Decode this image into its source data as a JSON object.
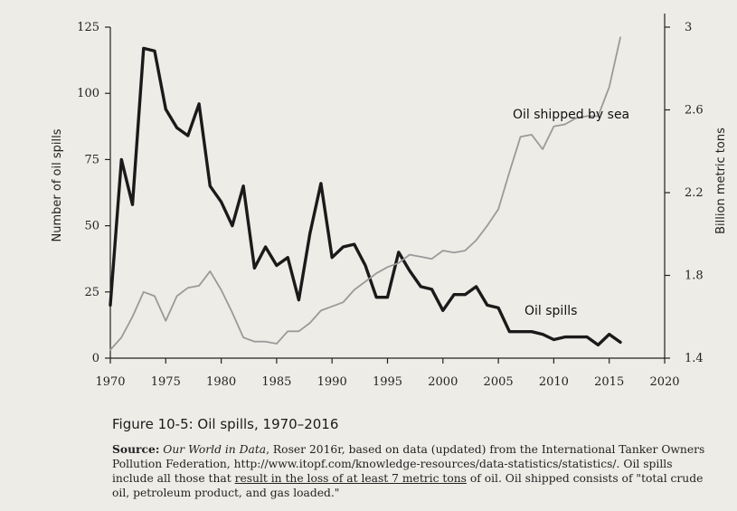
{
  "figure": {
    "title": "Figure 10-5: Oil spills, 1970–2016",
    "source_label": "Source:",
    "source_title": "Our World in Data",
    "source_part1": ", Roser 2016r, based on data (updated) from the International Tanker Owners Pollution Federation, http://www.itopf.com/knowledge-resources/data-statistics/statistics/. Oil spills include all those that ",
    "source_underlined": "result in the loss of at least 7 metric tons",
    "source_part2": " of oil. Oil shipped consists of \"total crude oil, petroleum product, and gas loaded.\""
  },
  "chart_data": {
    "type": "line",
    "title": "",
    "xlabel": "",
    "ylabel": "Number of oil spills",
    "y2label": "Billion metric tons",
    "xlim": [
      1970,
      2020
    ],
    "ylim": [
      0,
      125
    ],
    "y2lim": [
      1.4,
      3.0
    ],
    "x_ticks": [
      "1970",
      "1975",
      "1980",
      "1985",
      "1990",
      "1995",
      "2000",
      "2005",
      "2010",
      "2015",
      "2020"
    ],
    "y_ticks": [
      "0",
      "25",
      "50",
      "75",
      "100",
      "125"
    ],
    "y2_ticks": [
      "1.4",
      "1.8",
      "2.2",
      "2.6",
      "3"
    ],
    "colors": {
      "spills": "#1a1a1a",
      "shipped": "#9a9a9a"
    },
    "series": [
      {
        "name": "Oil spills",
        "axis": "left",
        "x": [
          1970,
          1971,
          1972,
          1973,
          1974,
          1975,
          1976,
          1977,
          1978,
          1979,
          1980,
          1981,
          1982,
          1983,
          1984,
          1985,
          1986,
          1987,
          1988,
          1989,
          1990,
          1991,
          1992,
          1993,
          1994,
          1995,
          1996,
          1997,
          1998,
          1999,
          2000,
          2001,
          2002,
          2003,
          2004,
          2005,
          2006,
          2007,
          2008,
          2009,
          2010,
          2011,
          2012,
          2013,
          2014,
          2015,
          2016
        ],
        "values": [
          20,
          75,
          58,
          117,
          116,
          94,
          87,
          84,
          96,
          65,
          59,
          50,
          65,
          34,
          42,
          35,
          38,
          22,
          47,
          66,
          38,
          42,
          43,
          35,
          23,
          23,
          40,
          33,
          27,
          26,
          18,
          24,
          24,
          27,
          20,
          19,
          10,
          10,
          10,
          9,
          7,
          8,
          8,
          8,
          5,
          9,
          6
        ]
      },
      {
        "name": "Oil shipped by sea",
        "axis": "right",
        "x": [
          1970,
          1971,
          1972,
          1973,
          1974,
          1975,
          1976,
          1977,
          1978,
          1979,
          1980,
          1981,
          1982,
          1983,
          1984,
          1985,
          1986,
          1987,
          1988,
          1989,
          1990,
          1991,
          1992,
          1993,
          1994,
          1995,
          1996,
          1997,
          1998,
          1999,
          2000,
          2001,
          2002,
          2003,
          2004,
          2005,
          2006,
          2007,
          2008,
          2009,
          2010,
          2011,
          2012,
          2013,
          2014,
          2015,
          2016
        ],
        "values": [
          1.44,
          1.5,
          1.6,
          1.72,
          1.7,
          1.58,
          1.7,
          1.74,
          1.75,
          1.82,
          1.73,
          1.62,
          1.5,
          1.48,
          1.48,
          1.47,
          1.53,
          1.53,
          1.57,
          1.63,
          1.65,
          1.67,
          1.73,
          1.77,
          1.81,
          1.84,
          1.86,
          1.9,
          1.89,
          1.88,
          1.92,
          1.91,
          1.92,
          1.97,
          2.04,
          2.12,
          2.3,
          2.47,
          2.48,
          2.41,
          2.52,
          2.53,
          2.56,
          2.57,
          2.57,
          2.71,
          2.95
        ]
      }
    ],
    "series_labels": [
      "Oil shipped by sea",
      "Oil spills"
    ]
  }
}
